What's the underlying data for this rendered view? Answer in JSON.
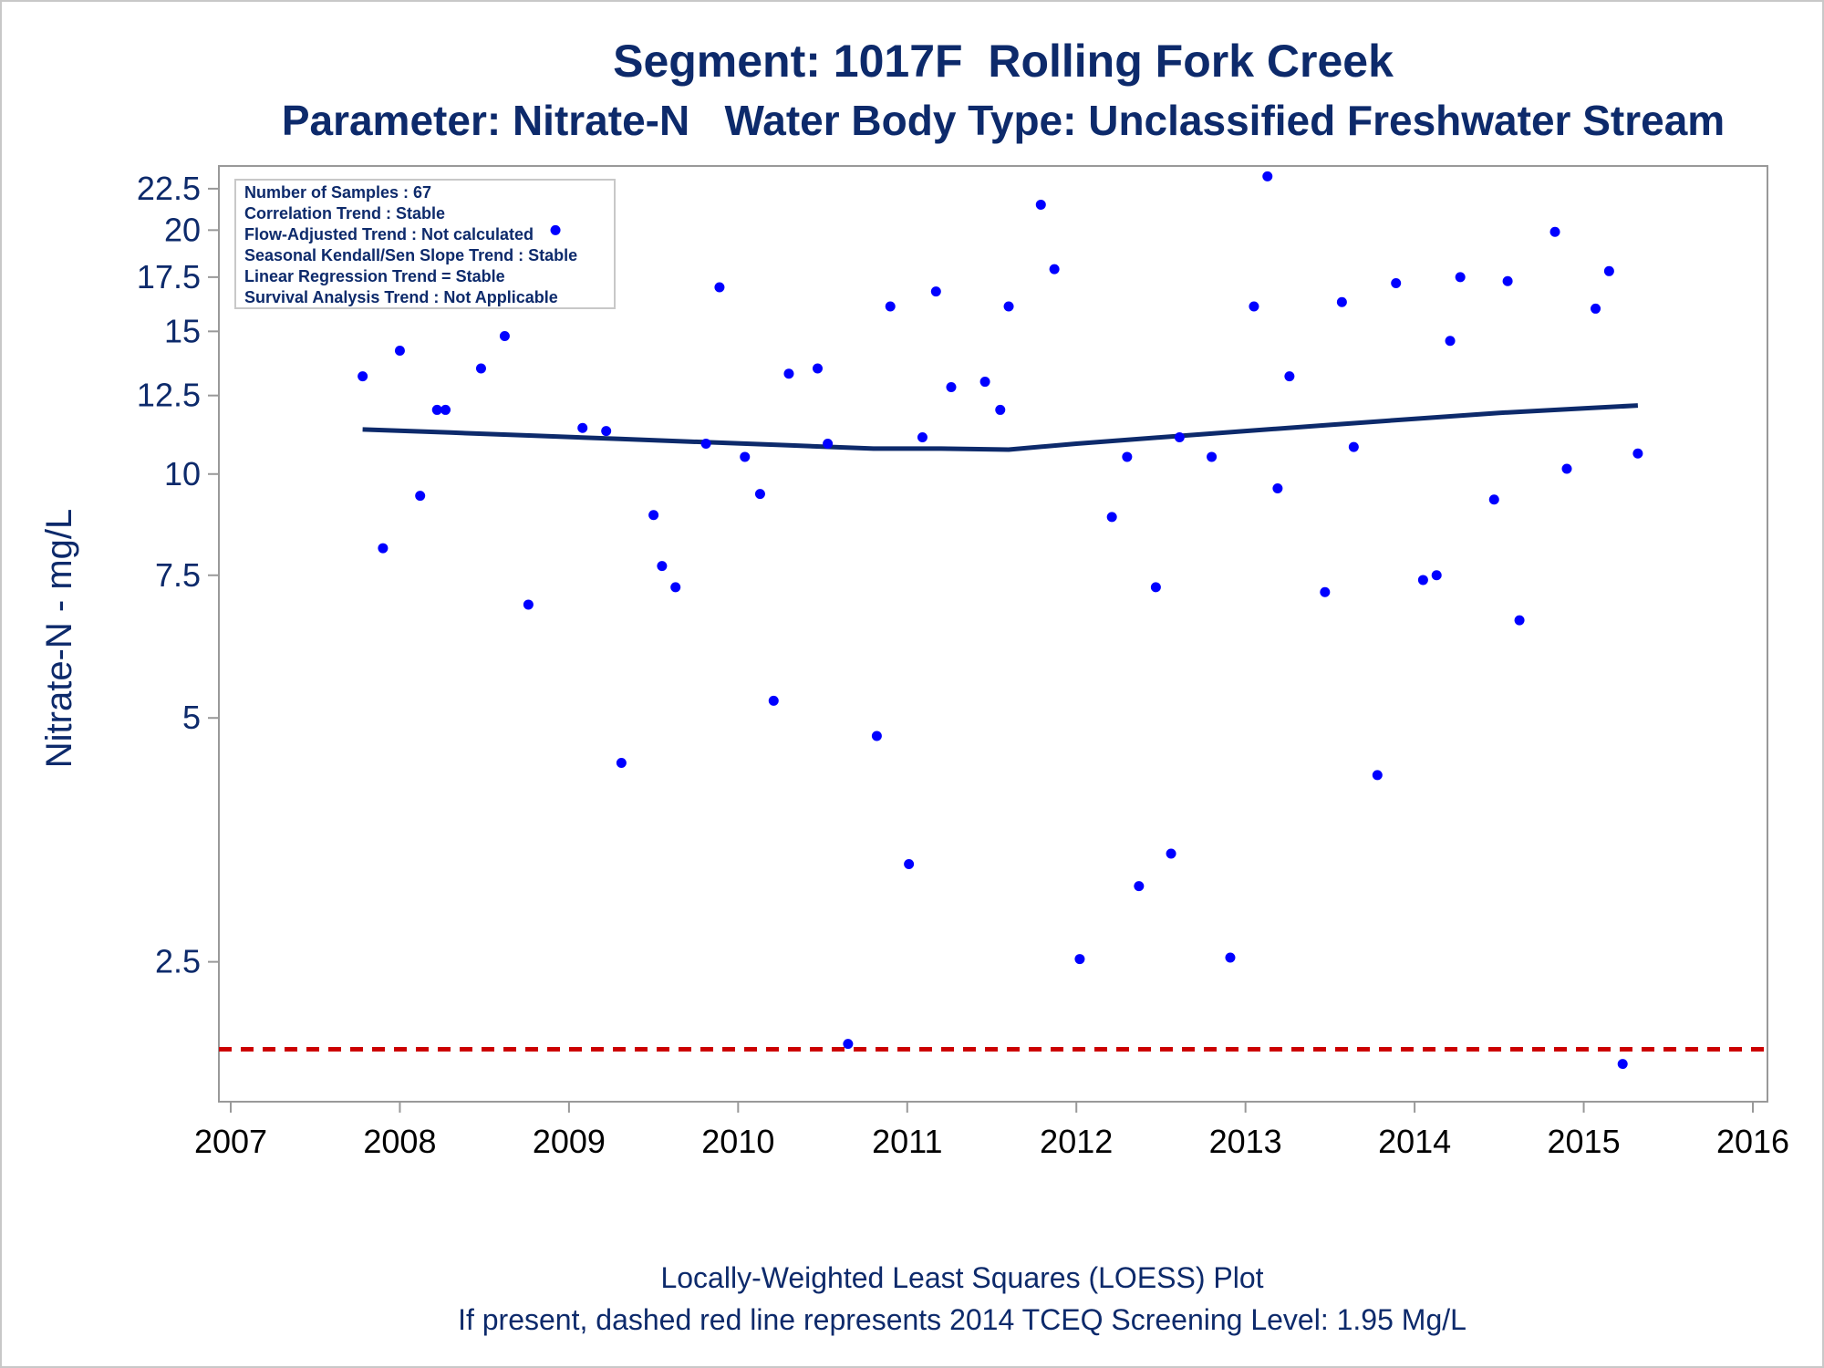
{
  "colors": {
    "text": "#0d2a6b",
    "points": "#0000ff",
    "loess": "#0d2a6b",
    "screening": "#cc0000",
    "axis": "#999999"
  },
  "chart_data": {
    "type": "scatter",
    "title": "Segment: 1017F  Rolling Fork Creek",
    "subtitle": "Parameter: Nitrate-N   Water Body Type: Unclassified Freshwater Stream",
    "xlabel": "",
    "ylabel": "Nitrate-N - mg/L",
    "x_scale": "date",
    "y_scale": "log",
    "xlim": [
      2007.0,
      2016.0
    ],
    "ylim": [
      1.68,
      24.0
    ],
    "x_ticks": [
      "2007",
      "2008",
      "2009",
      "2010",
      "2011",
      "2012",
      "2013",
      "2014",
      "2015",
      "2016"
    ],
    "y_ticks": [
      2.5,
      5,
      7.5,
      10,
      12.5,
      15,
      17.5,
      20,
      22.5
    ],
    "y_tick_labels": [
      "2.5",
      "5",
      "7.5",
      "10",
      "12.5",
      "15",
      "17.5",
      "20",
      "22.5"
    ],
    "grid": false,
    "stats_box": [
      "Number of Samples : 67",
      "Correlation Trend : Stable",
      "Flow-Adjusted Trend : Not calculated",
      "Seasonal Kendall/Sen Slope Trend : Stable",
      "Linear Regression Trend = Stable",
      "Survival Analysis Trend : Not Applicable"
    ],
    "stats_box_position": "top-left",
    "points": [
      {
        "x": 2007.78,
        "y": 13.2
      },
      {
        "x": 2007.9,
        "y": 8.1
      },
      {
        "x": 2008.0,
        "y": 14.2
      },
      {
        "x": 2008.12,
        "y": 9.4
      },
      {
        "x": 2008.22,
        "y": 12.0
      },
      {
        "x": 2008.27,
        "y": 12.0
      },
      {
        "x": 2008.48,
        "y": 13.5
      },
      {
        "x": 2008.62,
        "y": 14.8
      },
      {
        "x": 2008.76,
        "y": 6.9
      },
      {
        "x": 2008.92,
        "y": 20.0
      },
      {
        "x": 2009.08,
        "y": 11.4
      },
      {
        "x": 2009.22,
        "y": 11.3
      },
      {
        "x": 2009.31,
        "y": 4.4
      },
      {
        "x": 2009.5,
        "y": 8.9
      },
      {
        "x": 2009.55,
        "y": 7.7
      },
      {
        "x": 2009.63,
        "y": 7.25
      },
      {
        "x": 2009.81,
        "y": 10.9
      },
      {
        "x": 2009.89,
        "y": 17.0
      },
      {
        "x": 2010.04,
        "y": 10.5
      },
      {
        "x": 2010.13,
        "y": 9.45
      },
      {
        "x": 2010.21,
        "y": 5.25
      },
      {
        "x": 2010.3,
        "y": 13.3
      },
      {
        "x": 2010.47,
        "y": 13.5
      },
      {
        "x": 2010.53,
        "y": 10.9
      },
      {
        "x": 2010.65,
        "y": 1.98
      },
      {
        "x": 2010.82,
        "y": 4.75
      },
      {
        "x": 2010.9,
        "y": 16.1
      },
      {
        "x": 2011.01,
        "y": 3.3
      },
      {
        "x": 2011.09,
        "y": 11.1
      },
      {
        "x": 2011.17,
        "y": 16.8
      },
      {
        "x": 2011.26,
        "y": 12.8
      },
      {
        "x": 2011.46,
        "y": 13.0
      },
      {
        "x": 2011.55,
        "y": 12.0
      },
      {
        "x": 2011.6,
        "y": 16.1
      },
      {
        "x": 2011.79,
        "y": 21.5
      },
      {
        "x": 2011.87,
        "y": 17.9
      },
      {
        "x": 2012.02,
        "y": 2.52
      },
      {
        "x": 2012.21,
        "y": 8.85
      },
      {
        "x": 2012.3,
        "y": 10.5
      },
      {
        "x": 2012.37,
        "y": 3.1
      },
      {
        "x": 2012.47,
        "y": 7.25
      },
      {
        "x": 2012.56,
        "y": 3.4
      },
      {
        "x": 2012.61,
        "y": 11.1
      },
      {
        "x": 2012.8,
        "y": 10.5
      },
      {
        "x": 2012.91,
        "y": 2.53
      },
      {
        "x": 2013.05,
        "y": 16.1
      },
      {
        "x": 2013.13,
        "y": 23.3
      },
      {
        "x": 2013.19,
        "y": 9.6
      },
      {
        "x": 2013.26,
        "y": 13.2
      },
      {
        "x": 2013.47,
        "y": 7.15
      },
      {
        "x": 2013.57,
        "y": 16.3
      },
      {
        "x": 2013.64,
        "y": 10.8
      },
      {
        "x": 2013.78,
        "y": 4.25
      },
      {
        "x": 2013.89,
        "y": 17.2
      },
      {
        "x": 2014.05,
        "y": 7.4
      },
      {
        "x": 2014.13,
        "y": 7.5
      },
      {
        "x": 2014.21,
        "y": 14.6
      },
      {
        "x": 2014.27,
        "y": 17.5
      },
      {
        "x": 2014.47,
        "y": 9.3
      },
      {
        "x": 2014.55,
        "y": 17.3
      },
      {
        "x": 2014.62,
        "y": 6.6
      },
      {
        "x": 2014.83,
        "y": 19.9
      },
      {
        "x": 2014.9,
        "y": 10.15
      },
      {
        "x": 2015.07,
        "y": 16.0
      },
      {
        "x": 2015.15,
        "y": 17.8
      },
      {
        "x": 2015.23,
        "y": 1.87
      },
      {
        "x": 2015.32,
        "y": 10.6
      }
    ],
    "loess": [
      {
        "x": 2007.78,
        "y": 11.35
      },
      {
        "x": 2008.3,
        "y": 11.25
      },
      {
        "x": 2008.8,
        "y": 11.15
      },
      {
        "x": 2009.3,
        "y": 11.05
      },
      {
        "x": 2009.8,
        "y": 10.95
      },
      {
        "x": 2010.3,
        "y": 10.85
      },
      {
        "x": 2010.8,
        "y": 10.75
      },
      {
        "x": 2011.2,
        "y": 10.75
      },
      {
        "x": 2011.6,
        "y": 10.72
      },
      {
        "x": 2012.0,
        "y": 10.9
      },
      {
        "x": 2012.5,
        "y": 11.1
      },
      {
        "x": 2013.0,
        "y": 11.3
      },
      {
        "x": 2013.5,
        "y": 11.5
      },
      {
        "x": 2014.0,
        "y": 11.7
      },
      {
        "x": 2014.5,
        "y": 11.9
      },
      {
        "x": 2015.0,
        "y": 12.05
      },
      {
        "x": 2015.32,
        "y": 12.15
      }
    ],
    "screening_level": 1.95,
    "footnote_1": "Locally-Weighted Least Squares (LOESS) Plot",
    "footnote_2": "If present, dashed red line represents 2014 TCEQ Screening Level: 1.95 Mg/L"
  }
}
